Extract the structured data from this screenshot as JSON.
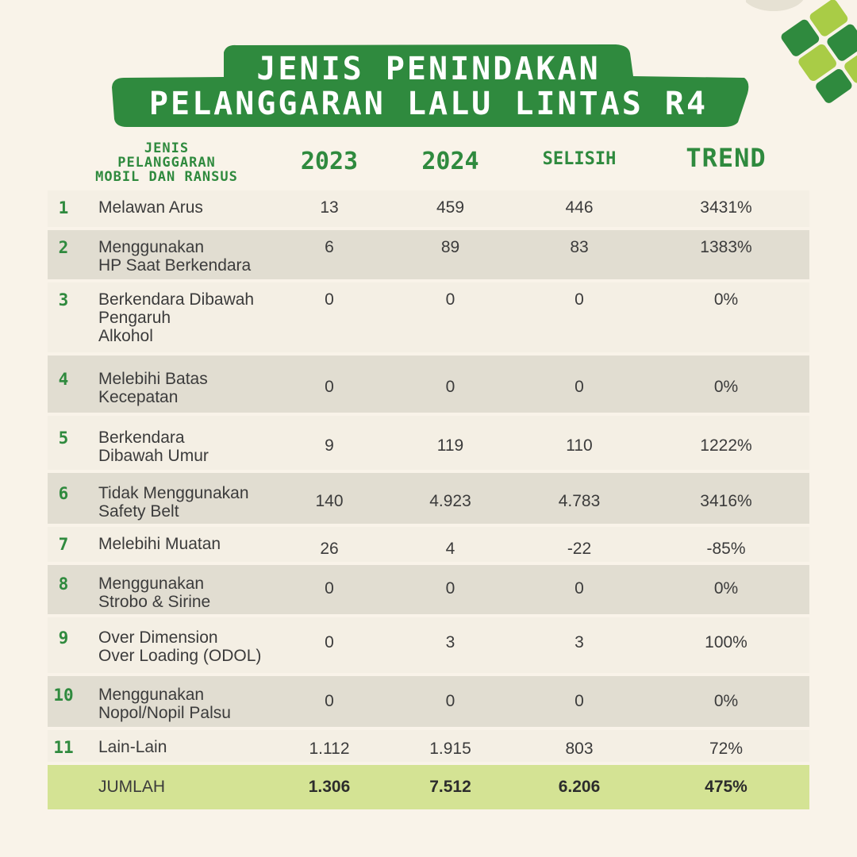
{
  "title": {
    "line1": "JENIS PENINDAKAN",
    "line2": "PELANGGARAN LALU LINTAS R4"
  },
  "colors": {
    "green": "#2f8a3e",
    "lime": "#a9cc46",
    "rowLight": "#f4efe4",
    "rowDark": "#e1ddd1",
    "total": "#d4e394",
    "bg": "#f9f3e9"
  },
  "table": {
    "headers": {
      "jenis": "JENIS\nPELANGGARAN\nMOBIL DAN RANSUS",
      "y2023": "2023",
      "y2024": "2024",
      "selisih": "SELISIH",
      "trend": "TREND"
    },
    "rows": [
      {
        "no": "1",
        "name": "Melawan Arus",
        "y2023": "13",
        "y2024": "459",
        "selisih": "446",
        "trend": "3431%"
      },
      {
        "no": "2",
        "name": "Menggunakan\nHP Saat Berkendara",
        "y2023": "6",
        "y2024": "89",
        "selisih": "83",
        "trend": "1383%"
      },
      {
        "no": "3",
        "name": "Berkendara Dibawah\nPengaruh\nAlkohol",
        "y2023": "0",
        "y2024": "0",
        "selisih": "0",
        "trend": "0%"
      },
      {
        "no": "4",
        "name": "Melebihi Batas\nKecepatan",
        "y2023": "0",
        "y2024": "0",
        "selisih": "0",
        "trend": "0%"
      },
      {
        "no": "5",
        "name": "Berkendara\nDibawah Umur",
        "y2023": "9",
        "y2024": "119",
        "selisih": "110",
        "trend": "1222%"
      },
      {
        "no": "6",
        "name": "Tidak Menggunakan\nSafety Belt",
        "y2023": "140",
        "y2024": "4.923",
        "selisih": "4.783",
        "trend": "3416%"
      },
      {
        "no": "7",
        "name": "Melebihi Muatan",
        "y2023": "26",
        "y2024": "4",
        "selisih": "-22",
        "trend": "-85%"
      },
      {
        "no": "8",
        "name": "Menggunakan\nStrobo & Sirine",
        "y2023": "0",
        "y2024": "0",
        "selisih": "0",
        "trend": "0%"
      },
      {
        "no": "9",
        "name": "Over Dimension\nOver Loading (ODOL)",
        "y2023": "0",
        "y2024": "3",
        "selisih": "3",
        "trend": "100%"
      },
      {
        "no": "10",
        "name": "Menggunakan\nNopol/Nopil Palsu",
        "y2023": "0",
        "y2024": "0",
        "selisih": "0",
        "trend": "0%"
      },
      {
        "no": "11",
        "name": "Lain-Lain",
        "y2023": "1.112",
        "y2024": "1.915",
        "selisih": "803",
        "trend": "72%"
      }
    ],
    "total": {
      "label": "JUMLAH",
      "y2023": "1.306",
      "y2024": "7.512",
      "selisih": "6.206",
      "trend": "475%"
    }
  }
}
